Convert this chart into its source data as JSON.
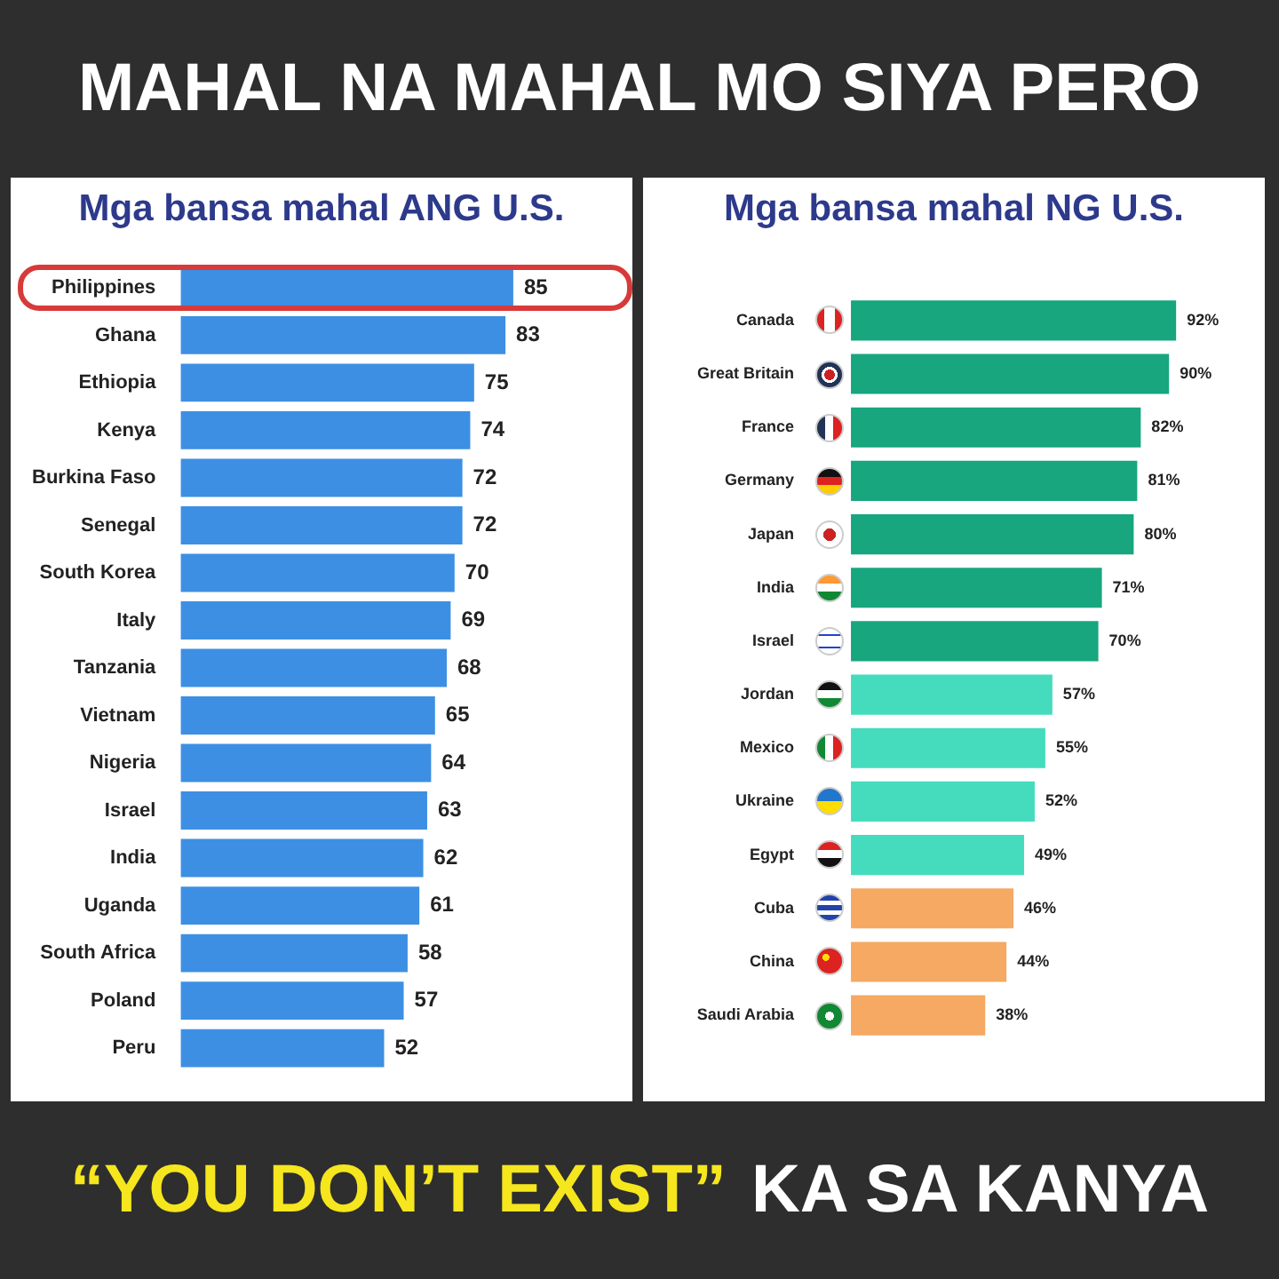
{
  "chart_data": [
    {
      "type": "other",
      "title": "MAHAL NA MAHAL MO SIYA PERO"
    },
    {
      "type": "bar",
      "orientation": "horizontal",
      "title": "Mga bansa mahal ANG U.S.",
      "categories": [
        "Philippines",
        "Ghana",
        "Ethiopia",
        "Kenya",
        "Burkina Faso",
        "Senegal",
        "South Korea",
        "Italy",
        "Tanzania",
        "Vietnam",
        "Nigeria",
        "Israel",
        "India",
        "Uganda",
        "South Africa",
        "Poland",
        "Peru"
      ],
      "values": [
        85,
        83,
        75,
        74,
        72,
        72,
        70,
        69,
        68,
        65,
        64,
        63,
        62,
        61,
        58,
        57,
        52
      ],
      "color": "#3d8fe3",
      "data_labels": true
    },
    {
      "type": "bar",
      "orientation": "horizontal",
      "title": "Mga bansa mahal NG U.S.",
      "categories": [
        "Canada",
        "Great Britain",
        "France",
        "Germany",
        "Japan",
        "India",
        "Israel",
        "Jordan",
        "Mexico",
        "Ukraine",
        "Egypt",
        "Cuba",
        "China",
        "Saudi Arabia"
      ],
      "values": [
        92,
        90,
        82,
        81,
        80,
        71,
        70,
        57,
        55,
        52,
        49,
        46,
        44,
        38
      ],
      "colors": [
        "#17a67e",
        "#17a67e",
        "#17a67e",
        "#17a67e",
        "#17a67e",
        "#17a67e",
        "#17a67e",
        "#45dcbd",
        "#45dcbd",
        "#45dcbd",
        "#45dcbd",
        "#f5a963",
        "#f5a963",
        "#f5a963"
      ],
      "value_labels": [
        "92%",
        "90%",
        "82%",
        "81%",
        "80%",
        "71%",
        "70%",
        "57%",
        "55%",
        "52%",
        "49%",
        "46%",
        "44%",
        "38%"
      ]
    },
    {
      "type": "other",
      "annotations": [
        "“YOU DON’T EXIST”",
        "KA SA KANYA"
      ]
    }
  ]
}
